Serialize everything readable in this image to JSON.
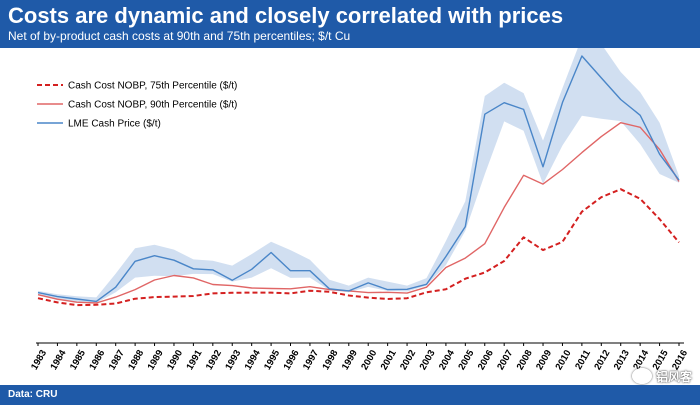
{
  "header": {
    "title": "Costs are dynamic and closely correlated with prices",
    "subtitle": "Net of by-product cash costs at 90th and 75th percentiles; $/t Cu"
  },
  "footer": {
    "source": "Data: CRU",
    "watermark": "铝风客"
  },
  "colors": {
    "header_bg": "#1f5aa8",
    "lme_line": "#4a86c8",
    "lme_band": "#c9d9ee",
    "cost_90": "#e06666",
    "cost_75": "#d42020"
  },
  "chart_data": {
    "type": "line",
    "title": "Costs are dynamic and closely correlated with prices",
    "xlabel": "",
    "ylabel": "",
    "ylim": [
      0,
      10000
    ],
    "grid": false,
    "legend_position": "top-left",
    "categories": [
      "1983",
      "1984",
      "1985",
      "1986",
      "1987",
      "1988",
      "1989",
      "1990",
      "1991",
      "1992",
      "1993",
      "1994",
      "1995",
      "1996",
      "1997",
      "1998",
      "1999",
      "2000",
      "2001",
      "2002",
      "2003",
      "2004",
      "2005",
      "2006",
      "2007",
      "2008",
      "2009",
      "2010",
      "2011",
      "2012",
      "2013",
      "2014",
      "2015",
      "2016"
    ],
    "series": [
      {
        "name": "Cash Cost NOBP, 75th Percentile ($/t)",
        "style": "dashed",
        "values": [
          1230,
          1070,
          970,
          980,
          1030,
          1210,
          1270,
          1290,
          1310,
          1410,
          1430,
          1440,
          1440,
          1410,
          1510,
          1470,
          1330,
          1250,
          1200,
          1230,
          1450,
          1560,
          1960,
          2190,
          2620,
          3510,
          3030,
          3340,
          4470,
          5010,
          5310,
          4950,
          4190,
          3320
        ]
      },
      {
        "name": "Cash Cost NOBP, 90th Percentile ($/t)",
        "style": "solid",
        "values": [
          1360,
          1190,
          1080,
          1050,
          1270,
          1550,
          1910,
          2080,
          1990,
          1740,
          1700,
          1610,
          1590,
          1580,
          1660,
          1550,
          1500,
          1440,
          1450,
          1420,
          1640,
          2380,
          2730,
          3270,
          4630,
          5830,
          5500,
          6050,
          6680,
          7280,
          7800,
          7630,
          6800,
          5600
        ]
      },
      {
        "name": "LME Cash Price ($/t)",
        "style": "solid",
        "values": [
          1440,
          1290,
          1200,
          1110,
          1640,
          2610,
          2820,
          2650,
          2330,
          2290,
          1900,
          2310,
          2940,
          2260,
          2260,
          1580,
          1500,
          1800,
          1550,
          1560,
          1750,
          2790,
          3910,
          8120,
          8550,
          8300,
          6150,
          8560,
          10300,
          9480,
          8670,
          8080,
          6620,
          5650
        ]
      },
      {
        "name": "LME band upper",
        "style": "band",
        "values": [
          1500,
          1380,
          1300,
          1260,
          2150,
          3100,
          3230,
          3050,
          2680,
          2630,
          2450,
          2880,
          3340,
          3030,
          2670,
          1920,
          1700,
          2000,
          1850,
          1700,
          1980,
          3370,
          4860,
          8800,
          9300,
          8910,
          7130,
          9100,
          11000,
          10750,
          9700,
          8940,
          7800,
          5800
        ]
      },
      {
        "name": "LME band lower",
        "style": "band",
        "values": [
          1380,
          1150,
          1100,
          1050,
          1450,
          2000,
          2070,
          2050,
          2140,
          2130,
          1850,
          2000,
          2350,
          1990,
          2000,
          1520,
          1450,
          1650,
          1500,
          1480,
          1700,
          2470,
          3750,
          5870,
          7850,
          7500,
          5510,
          6950,
          8060,
          7950,
          7860,
          7000,
          5880,
          5550
        ]
      }
    ]
  }
}
